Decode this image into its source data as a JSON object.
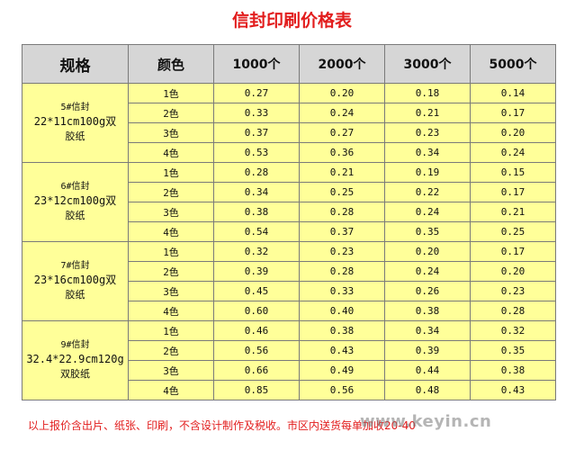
{
  "title": "信封印刷价格表",
  "header": {
    "spec": "规格",
    "color": "颜色",
    "quantities": [
      "1000个",
      "2000个",
      "3000个",
      "5000个"
    ]
  },
  "groups": [
    {
      "spec_line1": "5#信封",
      "spec_line2": "22*11cm100g双",
      "spec_line3": "胶纸",
      "rows": [
        {
          "color": "1色",
          "prices": [
            "0.27",
            "0.20",
            "0.18",
            "0.14"
          ]
        },
        {
          "color": "2色",
          "prices": [
            "0.33",
            "0.24",
            "0.21",
            "0.17"
          ]
        },
        {
          "color": "3色",
          "prices": [
            "0.37",
            "0.27",
            "0.23",
            "0.20"
          ]
        },
        {
          "color": "4色",
          "prices": [
            "0.53",
            "0.36",
            "0.34",
            "0.24"
          ]
        }
      ]
    },
    {
      "spec_line1": "6#信封",
      "spec_line2": "23*12cm100g双",
      "spec_line3": "胶纸",
      "rows": [
        {
          "color": "1色",
          "prices": [
            "0.28",
            "0.21",
            "0.19",
            "0.15"
          ]
        },
        {
          "color": "2色",
          "prices": [
            "0.34",
            "0.25",
            "0.22",
            "0.17"
          ]
        },
        {
          "color": "3色",
          "prices": [
            "0.38",
            "0.28",
            "0.24",
            "0.21"
          ]
        },
        {
          "color": "4色",
          "prices": [
            "0.54",
            "0.37",
            "0.35",
            "0.25"
          ]
        }
      ]
    },
    {
      "spec_line1": "7#信封",
      "spec_line2": "23*16cm100g双",
      "spec_line3": "胶纸",
      "rows": [
        {
          "color": "1色",
          "prices": [
            "0.32",
            "0.23",
            "0.20",
            "0.17"
          ]
        },
        {
          "color": "2色",
          "prices": [
            "0.39",
            "0.28",
            "0.24",
            "0.20"
          ]
        },
        {
          "color": "3色",
          "prices": [
            "0.45",
            "0.33",
            "0.26",
            "0.23"
          ]
        },
        {
          "color": "4色",
          "prices": [
            "0.60",
            "0.40",
            "0.38",
            "0.28"
          ]
        }
      ]
    },
    {
      "spec_line1": "9#信封",
      "spec_line2": "32.4*22.9cm120g",
      "spec_line3": "双胶纸",
      "rows": [
        {
          "color": "1色",
          "prices": [
            "0.46",
            "0.38",
            "0.34",
            "0.32"
          ]
        },
        {
          "color": "2色",
          "prices": [
            "0.56",
            "0.43",
            "0.39",
            "0.35"
          ]
        },
        {
          "color": "3色",
          "prices": [
            "0.66",
            "0.49",
            "0.44",
            "0.38"
          ]
        },
        {
          "color": "4色",
          "prices": [
            "0.85",
            "0.56",
            "0.48",
            "0.43"
          ]
        }
      ]
    }
  ],
  "footer_note": "以上报价含出片、纸张、印刷，不含设计制作及税收。市区内送货每单加收20-40",
  "watermark": "www.keyin.cn",
  "colors": {
    "title": "#e21d1d",
    "header_bg": "#d6d6d6",
    "cell_bg": "#ffff99",
    "border": "#7a7a7a"
  }
}
